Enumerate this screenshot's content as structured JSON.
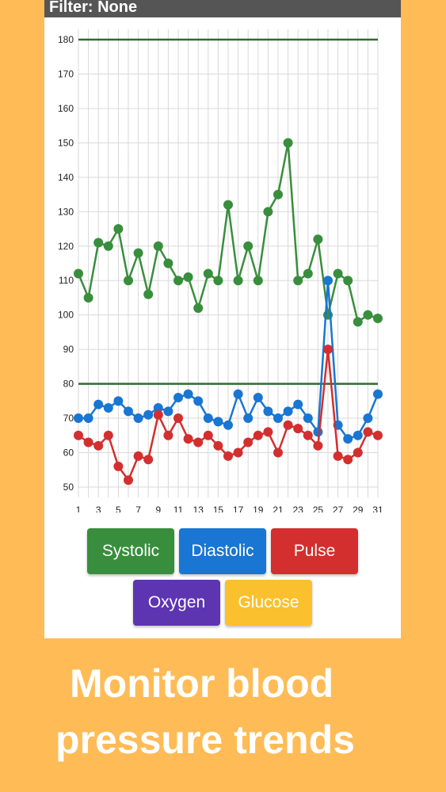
{
  "filter": {
    "label": "Filter: None"
  },
  "colors": {
    "systolic": "#388E3C",
    "diastolic": "#1976D2",
    "pulse": "#D32F2F",
    "oxygen": "#5E35B1",
    "glucose": "#FBC02D",
    "reference_line": "#2E6B2E",
    "background": "#FFBB55"
  },
  "buttons": {
    "systolic": "Systolic",
    "diastolic": "Diastolic",
    "pulse": "Pulse",
    "oxygen": "Oxygen",
    "glucose": "Glucose"
  },
  "tagline": {
    "line1": "Monitor blood",
    "line2": "pressure trends"
  },
  "chart_data": {
    "type": "line",
    "x": [
      1,
      2,
      3,
      4,
      5,
      6,
      7,
      8,
      9,
      10,
      11,
      12,
      13,
      14,
      15,
      16,
      17,
      18,
      19,
      20,
      21,
      22,
      23,
      24,
      25,
      26,
      27,
      28,
      29,
      30,
      31
    ],
    "x_ticks": [
      1,
      3,
      5,
      7,
      9,
      11,
      13,
      15,
      17,
      19,
      21,
      23,
      25,
      27,
      29,
      31
    ],
    "y_ticks": [
      50,
      60,
      70,
      80,
      90,
      100,
      110,
      120,
      130,
      140,
      150,
      160,
      170,
      180
    ],
    "ylim": [
      47,
      183
    ],
    "grid": true,
    "reference_lines": [
      180,
      80
    ],
    "series": [
      {
        "key": "systolic",
        "values": [
          112,
          105,
          121,
          120,
          125,
          110,
          118,
          106,
          120,
          115,
          110,
          111,
          102,
          112,
          110,
          132,
          110,
          120,
          110,
          130,
          135,
          150,
          110,
          112,
          122,
          100,
          112,
          110,
          98,
          100,
          99
        ]
      },
      {
        "key": "diastolic",
        "values": [
          70,
          70,
          74,
          73,
          75,
          72,
          70,
          71,
          73,
          72,
          76,
          77,
          75,
          70,
          69,
          68,
          77,
          70,
          76,
          72,
          70,
          72,
          74,
          70,
          66,
          110,
          68,
          64,
          65,
          70,
          77
        ]
      },
      {
        "key": "pulse",
        "values": [
          65,
          63,
          62,
          65,
          56,
          52,
          59,
          58,
          71,
          65,
          70,
          64,
          63,
          65,
          62,
          59,
          60,
          63,
          65,
          66,
          60,
          68,
          67,
          65,
          62,
          90,
          59,
          58,
          60,
          66,
          65
        ]
      }
    ]
  }
}
